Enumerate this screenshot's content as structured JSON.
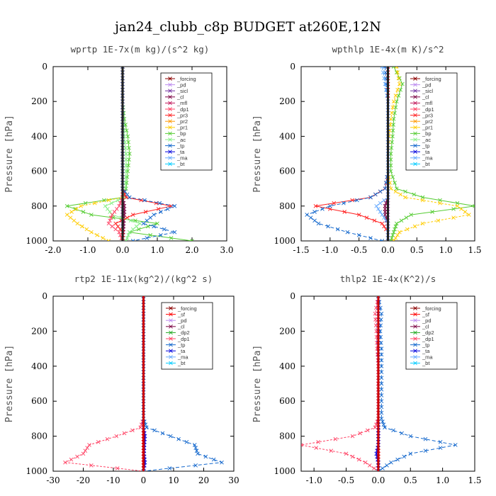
{
  "figure_title": "jan24_clubb_c8p  BUDGET at260E,12N",
  "colors": {
    "forcing": "#8b0000",
    "pd": "#bb88ee",
    "sicl": "#7030a0",
    "cl": "#7a0040",
    "mfl": "#c2185b",
    "dp1": "#ff4466",
    "dp2": "#22aa22",
    "pr3": "#ff2020",
    "pr2": "#ff9900",
    "pr1": "#ffcc00",
    "bp": "#55cc33",
    "ac": "#88ee88",
    "tp": "#1166cc",
    "ta": "#0000dd",
    "ma": "#66aaff",
    "bt": "#00ccff",
    "sf": "#ff0000"
  },
  "chart_data": [
    {
      "type": "line",
      "title": "wprtp  1E-7x(m kg)/(s^2 kg)",
      "ylabel": "Pressure [hPa]",
      "xlim": [
        -2.0,
        3.0
      ],
      "ylim": [
        0,
        1000
      ],
      "y_inverted": true,
      "xticks": [
        "-2.0",
        "-1.0",
        "0.0",
        "1.0",
        "2.0",
        "3.0"
      ],
      "yticks": [
        "0",
        "200",
        "400",
        "600",
        "800",
        "1000"
      ],
      "legend": [
        "_forcing",
        "_pd",
        "_sicl",
        "_cl",
        "_mfl",
        "_dp1",
        "_pr3",
        "_pr2",
        "_pr1",
        "_bp",
        "_ac",
        "_tp",
        "_ta",
        "_ma",
        "_bt"
      ],
      "legend_keys": [
        "forcing",
        "pd",
        "sicl",
        "cl",
        "mfl",
        "dp1",
        "pr3",
        "pr2",
        "pr1",
        "bp",
        "ac",
        "tp",
        "ta",
        "ma",
        "bt"
      ],
      "y": [
        0,
        100,
        200,
        300,
        400,
        500,
        600,
        700,
        750,
        800,
        850,
        900,
        950,
        1000
      ],
      "series": [
        {
          "key": "forcing",
          "x": [
            0,
            0,
            0,
            0,
            0,
            0,
            0,
            0,
            0,
            0,
            0,
            0,
            0,
            0
          ]
        },
        {
          "key": "pd",
          "x": [
            0,
            0,
            0,
            0,
            0,
            0,
            0,
            0,
            0,
            0,
            0,
            0,
            0,
            0
          ]
        },
        {
          "key": "cl",
          "x": [
            0,
            0,
            0,
            0,
            0,
            0,
            0,
            0,
            0,
            0.05,
            0.05,
            0.03,
            0.02,
            0
          ]
        },
        {
          "key": "bp",
          "x": [
            0,
            0,
            0,
            0.05,
            0.15,
            0.2,
            0.15,
            0.1,
            0,
            -1.6,
            -0.9,
            1.0,
            0.2,
            2.0
          ]
        },
        {
          "key": "ac",
          "x": [
            0,
            0,
            0,
            0.02,
            0.05,
            0.1,
            0.1,
            0.08,
            0.05,
            -0.5,
            -0.3,
            0.5,
            0.2,
            0.1
          ]
        },
        {
          "key": "pr1",
          "x": [
            0,
            0,
            0,
            0,
            0,
            0,
            0,
            0,
            0,
            -1.2,
            -1.6,
            -1.3,
            -0.9,
            -0.4
          ]
        },
        {
          "key": "pr3",
          "x": [
            0,
            0,
            0,
            0,
            0,
            0,
            0,
            0,
            0.1,
            1.4,
            0.3,
            -0.2,
            0,
            0
          ]
        },
        {
          "key": "dp1",
          "x": [
            0,
            0,
            0,
            0,
            0,
            0,
            0,
            0,
            0,
            -0.1,
            -0.3,
            -0.4,
            -0.1,
            0
          ]
        },
        {
          "key": "tp",
          "x": [
            0,
            0,
            0,
            0,
            0,
            0,
            0,
            0,
            0.2,
            1.5,
            0.9,
            0.6,
            1.5,
            0.3
          ]
        }
      ]
    },
    {
      "type": "line",
      "title": "wpthlp  1E-4x(m K)/s^2",
      "ylabel": "Pressure [hPa]",
      "xlim": [
        -1.5,
        1.5
      ],
      "ylim": [
        0,
        1000
      ],
      "y_inverted": true,
      "xticks": [
        "-1.5",
        "-1.0",
        "-0.5",
        "0.0",
        "0.5",
        "1.0",
        "1.5"
      ],
      "yticks": [
        "0",
        "200",
        "400",
        "600",
        "800",
        "1000"
      ],
      "legend": [
        "_forcing",
        "_pd",
        "_sicl",
        "_cl",
        "_mfl",
        "_dp1",
        "_pr3",
        "_pr2",
        "_pr1",
        "_bp",
        "_ac",
        "_tp",
        "_ta",
        "_ma",
        "_bt"
      ],
      "legend_keys": [
        "forcing",
        "pd",
        "sicl",
        "cl",
        "mfl",
        "dp1",
        "pr3",
        "pr2",
        "pr1",
        "bp",
        "ac",
        "tp",
        "ta",
        "ma",
        "bt"
      ],
      "y": [
        0,
        100,
        200,
        300,
        400,
        500,
        600,
        700,
        750,
        800,
        850,
        900,
        950,
        1000
      ],
      "series": [
        {
          "key": "forcing",
          "x": [
            0,
            0,
            0,
            0,
            0,
            0,
            0,
            0,
            0,
            0,
            0,
            0,
            0,
            0
          ]
        },
        {
          "key": "pd",
          "x": [
            0,
            0,
            0,
            0,
            0,
            0,
            0,
            0,
            0,
            0,
            0,
            0,
            0,
            0
          ]
        },
        {
          "key": "cl",
          "x": [
            0,
            0,
            0,
            0,
            0,
            0,
            0,
            0,
            0,
            -0.05,
            -0.05,
            0,
            0,
            0
          ]
        },
        {
          "key": "bp",
          "x": [
            0.1,
            0.25,
            0.15,
            0.1,
            0.08,
            0.05,
            0.05,
            0.15,
            0.6,
            1.5,
            0.4,
            0.15,
            0.1,
            0.05
          ]
        },
        {
          "key": "pr1",
          "x": [
            0.15,
            0.2,
            0.1,
            0.05,
            0.02,
            0,
            0,
            0.05,
            0.3,
            1.2,
            1.4,
            0.6,
            0.2,
            0.1
          ]
        },
        {
          "key": "pr3",
          "x": [
            0,
            0,
            0,
            0,
            0,
            0,
            0,
            -0.05,
            -0.3,
            -1.25,
            -0.5,
            -0.1,
            0,
            0
          ]
        },
        {
          "key": "tp",
          "x": [
            -0.05,
            -0.03,
            0,
            0,
            0,
            0,
            0,
            -0.05,
            -0.3,
            -1.0,
            -1.4,
            -1.2,
            -0.7,
            -0.1
          ]
        },
        {
          "key": "ma",
          "x": [
            -0.1,
            -0.05,
            0,
            0,
            0,
            0,
            0,
            0,
            0,
            -0.2,
            -0.1,
            0,
            0,
            0
          ]
        }
      ]
    },
    {
      "type": "line",
      "title": "rtp2  1E-11x(kg^2)/(kg^2 s)",
      "ylabel": "Pressure [hPa]",
      "xlim": [
        -30,
        30
      ],
      "ylim": [
        0,
        1000
      ],
      "y_inverted": true,
      "xticks": [
        "-30",
        "-20",
        "-10",
        "0",
        "10",
        "20",
        "30"
      ],
      "yticks": [
        "0",
        "200",
        "400",
        "600",
        "800",
        "1000"
      ],
      "legend": [
        "_forcing",
        "_sf",
        "_pd",
        "_cl",
        "_dp2",
        "_dp1",
        "_tp",
        "_ta",
        "_ma",
        "_bt"
      ],
      "legend_keys": [
        "forcing",
        "sf",
        "pd",
        "cl",
        "dp2",
        "dp1",
        "tp",
        "ta",
        "ma",
        "bt"
      ],
      "y": [
        0,
        100,
        200,
        300,
        400,
        500,
        600,
        700,
        750,
        800,
        850,
        900,
        950,
        1000
      ],
      "series": [
        {
          "key": "forcing",
          "x": [
            0,
            0,
            0,
            0,
            0,
            0,
            0,
            0,
            0,
            0,
            0,
            0,
            0,
            0
          ]
        },
        {
          "key": "sf",
          "x": [
            0,
            0,
            0,
            0,
            0,
            0,
            0,
            0,
            0,
            0,
            0,
            0,
            0,
            0
          ]
        },
        {
          "key": "ta",
          "x": [
            0,
            0,
            0,
            0,
            0,
            0,
            0,
            0,
            0,
            0.5,
            0.3,
            0.2,
            0.5,
            0
          ]
        },
        {
          "key": "dp1",
          "x": [
            0,
            0,
            0,
            0,
            0,
            0,
            0,
            0,
            -1,
            -9,
            -18,
            -20,
            -26,
            0
          ]
        },
        {
          "key": "tp",
          "x": [
            0,
            0,
            0,
            0,
            0,
            0,
            0,
            0,
            1,
            9,
            17,
            18,
            26,
            0
          ]
        }
      ]
    },
    {
      "type": "line",
      "title": "thlp2  1E-4x(K^2)/s",
      "ylabel": "Pressure [hPa]",
      "xlim": [
        -1.2,
        1.5
      ],
      "ylim": [
        0,
        1000
      ],
      "y_inverted": true,
      "xticks": [
        "-1.0",
        "-0.5",
        "0.0",
        "0.5",
        "1.0",
        "1.5"
      ],
      "yticks": [
        "0",
        "200",
        "400",
        "600",
        "800",
        "1000"
      ],
      "legend": [
        "_forcing",
        "_sf",
        "_pd",
        "_cl",
        "_dp2",
        "_dp1",
        "_tp",
        "_ta",
        "_ma",
        "_bt"
      ],
      "legend_keys": [
        "forcing",
        "sf",
        "pd",
        "cl",
        "dp2",
        "dp1",
        "tp",
        "ta",
        "ma",
        "bt"
      ],
      "y": [
        0,
        100,
        200,
        300,
        400,
        500,
        600,
        700,
        750,
        800,
        850,
        900,
        950,
        1000
      ],
      "series": [
        {
          "key": "forcing",
          "x": [
            0,
            0,
            0,
            0,
            0,
            0,
            0,
            0,
            0,
            0,
            0,
            0,
            0,
            0
          ]
        },
        {
          "key": "sf",
          "x": [
            0,
            0,
            0,
            0,
            0,
            0,
            0,
            0,
            0,
            0,
            0,
            0,
            0,
            0
          ]
        },
        {
          "key": "ta",
          "x": [
            0,
            0,
            0,
            0,
            0,
            0,
            0,
            0,
            0,
            0,
            0,
            -0.03,
            0,
            0
          ]
        },
        {
          "key": "dp1",
          "x": [
            0,
            -0.05,
            -0.03,
            -0.02,
            0,
            0,
            0,
            0,
            -0.05,
            -0.4,
            -1.2,
            -0.5,
            -0.2,
            0
          ]
        },
        {
          "key": "tp",
          "x": [
            0,
            0.05,
            0.03,
            0.05,
            0.05,
            0.05,
            0.05,
            0.05,
            0.1,
            0.5,
            1.2,
            0.5,
            0.2,
            0
          ]
        }
      ]
    }
  ]
}
